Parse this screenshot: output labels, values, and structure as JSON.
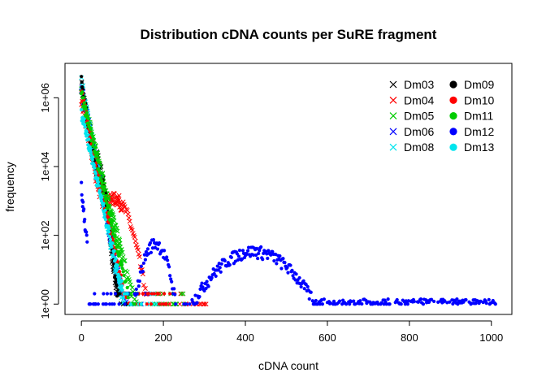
{
  "chart_data": {
    "type": "scatter",
    "title": "Distribution cDNA counts per SuRE fragment",
    "xlabel": "cDNA count",
    "ylabel": "frequency",
    "xlim": [
      -40,
      1050
    ],
    "ylim": [
      0.5,
      10000000
    ],
    "y_scale": "log10",
    "x_ticks": [
      0,
      200,
      400,
      600,
      800,
      1000
    ],
    "x_tick_labels": [
      "0",
      "200",
      "400",
      "600",
      "800",
      "1000"
    ],
    "y_ticks": [
      1,
      100,
      10000,
      1000000
    ],
    "y_tick_labels": [
      "1e+00",
      "1e+02",
      "1e+04",
      "1e+06"
    ],
    "grid": false,
    "legend_position": "top-right",
    "series": [
      {
        "name": "Dm03",
        "marker": "x",
        "color": "#000000",
        "shape": {
          "peak": 2500000,
          "decay": 0.16,
          "bump_x": 35,
          "bump_y": 15000,
          "bump_w": 14,
          "max_x": 130
        }
      },
      {
        "name": "Dm04",
        "marker": "x",
        "color": "#ff0000",
        "shape": {
          "peak": 800000,
          "decay": 0.14,
          "bump_x": 80,
          "bump_y": 1200,
          "bump_w": 30,
          "max_x": 320
        }
      },
      {
        "name": "Dm05",
        "marker": "x",
        "color": "#00cc00",
        "shape": {
          "peak": 1500000,
          "decay": 0.11,
          "bump_x": 12,
          "bump_y": 6000,
          "bump_w": 10,
          "max_x": 250
        }
      },
      {
        "name": "Dm06",
        "marker": "x",
        "color": "#0000ff",
        "shape": {
          "peak": 2000000,
          "decay": 0.14,
          "bump_x": 20,
          "bump_y": 1500,
          "bump_w": 10,
          "max_x": 180
        }
      },
      {
        "name": "Dm08",
        "marker": "x",
        "color": "#00e5ee",
        "shape": {
          "peak": 3000000,
          "decay": 0.15,
          "bump_x": 15,
          "bump_y": 2000,
          "bump_w": 10,
          "max_x": 200
        }
      },
      {
        "name": "Dm09",
        "marker": "dot",
        "color": "#000000",
        "shape": {
          "peak": 3000000,
          "decay": 0.17,
          "bump_x": 45,
          "bump_y": 3000,
          "bump_w": 14,
          "max_x": 110
        }
      },
      {
        "name": "Dm10",
        "marker": "dot",
        "color": "#ff0000",
        "shape": {
          "peak": 1500000,
          "decay": 0.13,
          "bump_x": 30,
          "bump_y": 800,
          "bump_w": 14,
          "max_x": 240
        }
      },
      {
        "name": "Dm11",
        "marker": "dot",
        "color": "#00cc00",
        "shape": {
          "peak": 1500000,
          "decay": 0.12,
          "bump_x": 20,
          "bump_y": 2500,
          "bump_w": 12,
          "max_x": 130
        }
      },
      {
        "name": "Dm12",
        "marker": "dot",
        "color": "#0000ff",
        "shape": {
          "peak": 3000,
          "decay": 0.0,
          "bump_x": 180,
          "bump_y": 60,
          "bump_w": 25,
          "bump2_x": 420,
          "bump2_y": 35,
          "bump2_w": 80,
          "max_x": 1010,
          "low_start": 15
        }
      },
      {
        "name": "Dm13",
        "marker": "dot",
        "color": "#00e5ee",
        "shape": {
          "peak": 400000,
          "decay": 0.12,
          "bump_x": 15,
          "bump_y": 1000,
          "bump_w": 10,
          "max_x": 150
        }
      }
    ]
  }
}
